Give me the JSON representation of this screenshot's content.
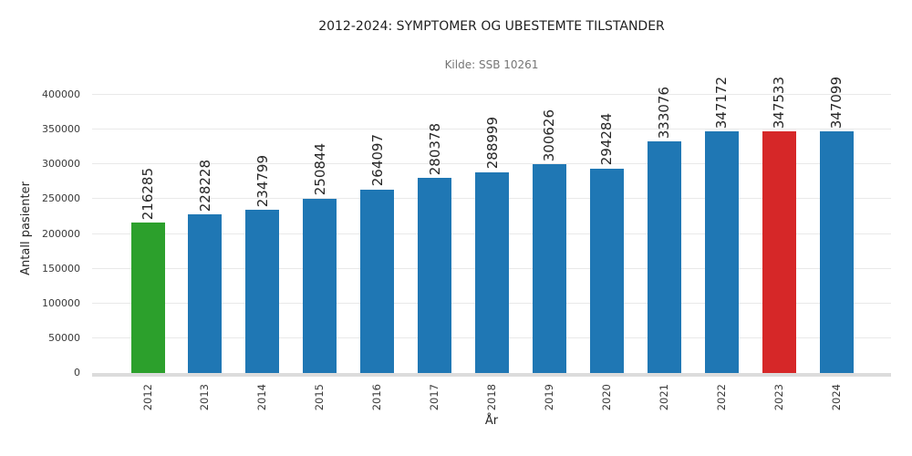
{
  "chart_data": {
    "type": "bar",
    "title": "2012-2024: SYMPTOMER OG UBESTEMTE TILSTANDER",
    "subtitle": "Kilde: SSB 10261",
    "xlabel": "År",
    "ylabel": "Antall pasienter",
    "categories": [
      "2012",
      "2013",
      "2014",
      "2015",
      "2016",
      "2017",
      "2018",
      "2019",
      "2020",
      "2021",
      "2022",
      "2023",
      "2024"
    ],
    "values": [
      216285,
      228228,
      234799,
      250844,
      264097,
      280378,
      288999,
      300626,
      294284,
      333076,
      347172,
      347533,
      347099
    ],
    "bar_colors": [
      "#2ca02c",
      "#1f77b4",
      "#1f77b4",
      "#1f77b4",
      "#1f77b4",
      "#1f77b4",
      "#1f77b4",
      "#1f77b4",
      "#1f77b4",
      "#1f77b4",
      "#1f77b4",
      "#d62728",
      "#1f77b4"
    ],
    "value_labels_shown": true,
    "ylim": [
      0,
      400000
    ],
    "yticks": [
      0,
      50000,
      100000,
      150000,
      200000,
      250000,
      300000,
      350000,
      400000
    ],
    "grid": "horizontal",
    "legend": null,
    "colors": {
      "default_bar": "#1f77b4",
      "first_bar": "#2ca02c",
      "max_bar": "#d62728",
      "grid": "#e9e9e9",
      "spine": "#dcdcdc",
      "title": "#1f1f1f",
      "subtitle": "#757575",
      "tick": "#3a3a3a"
    }
  }
}
